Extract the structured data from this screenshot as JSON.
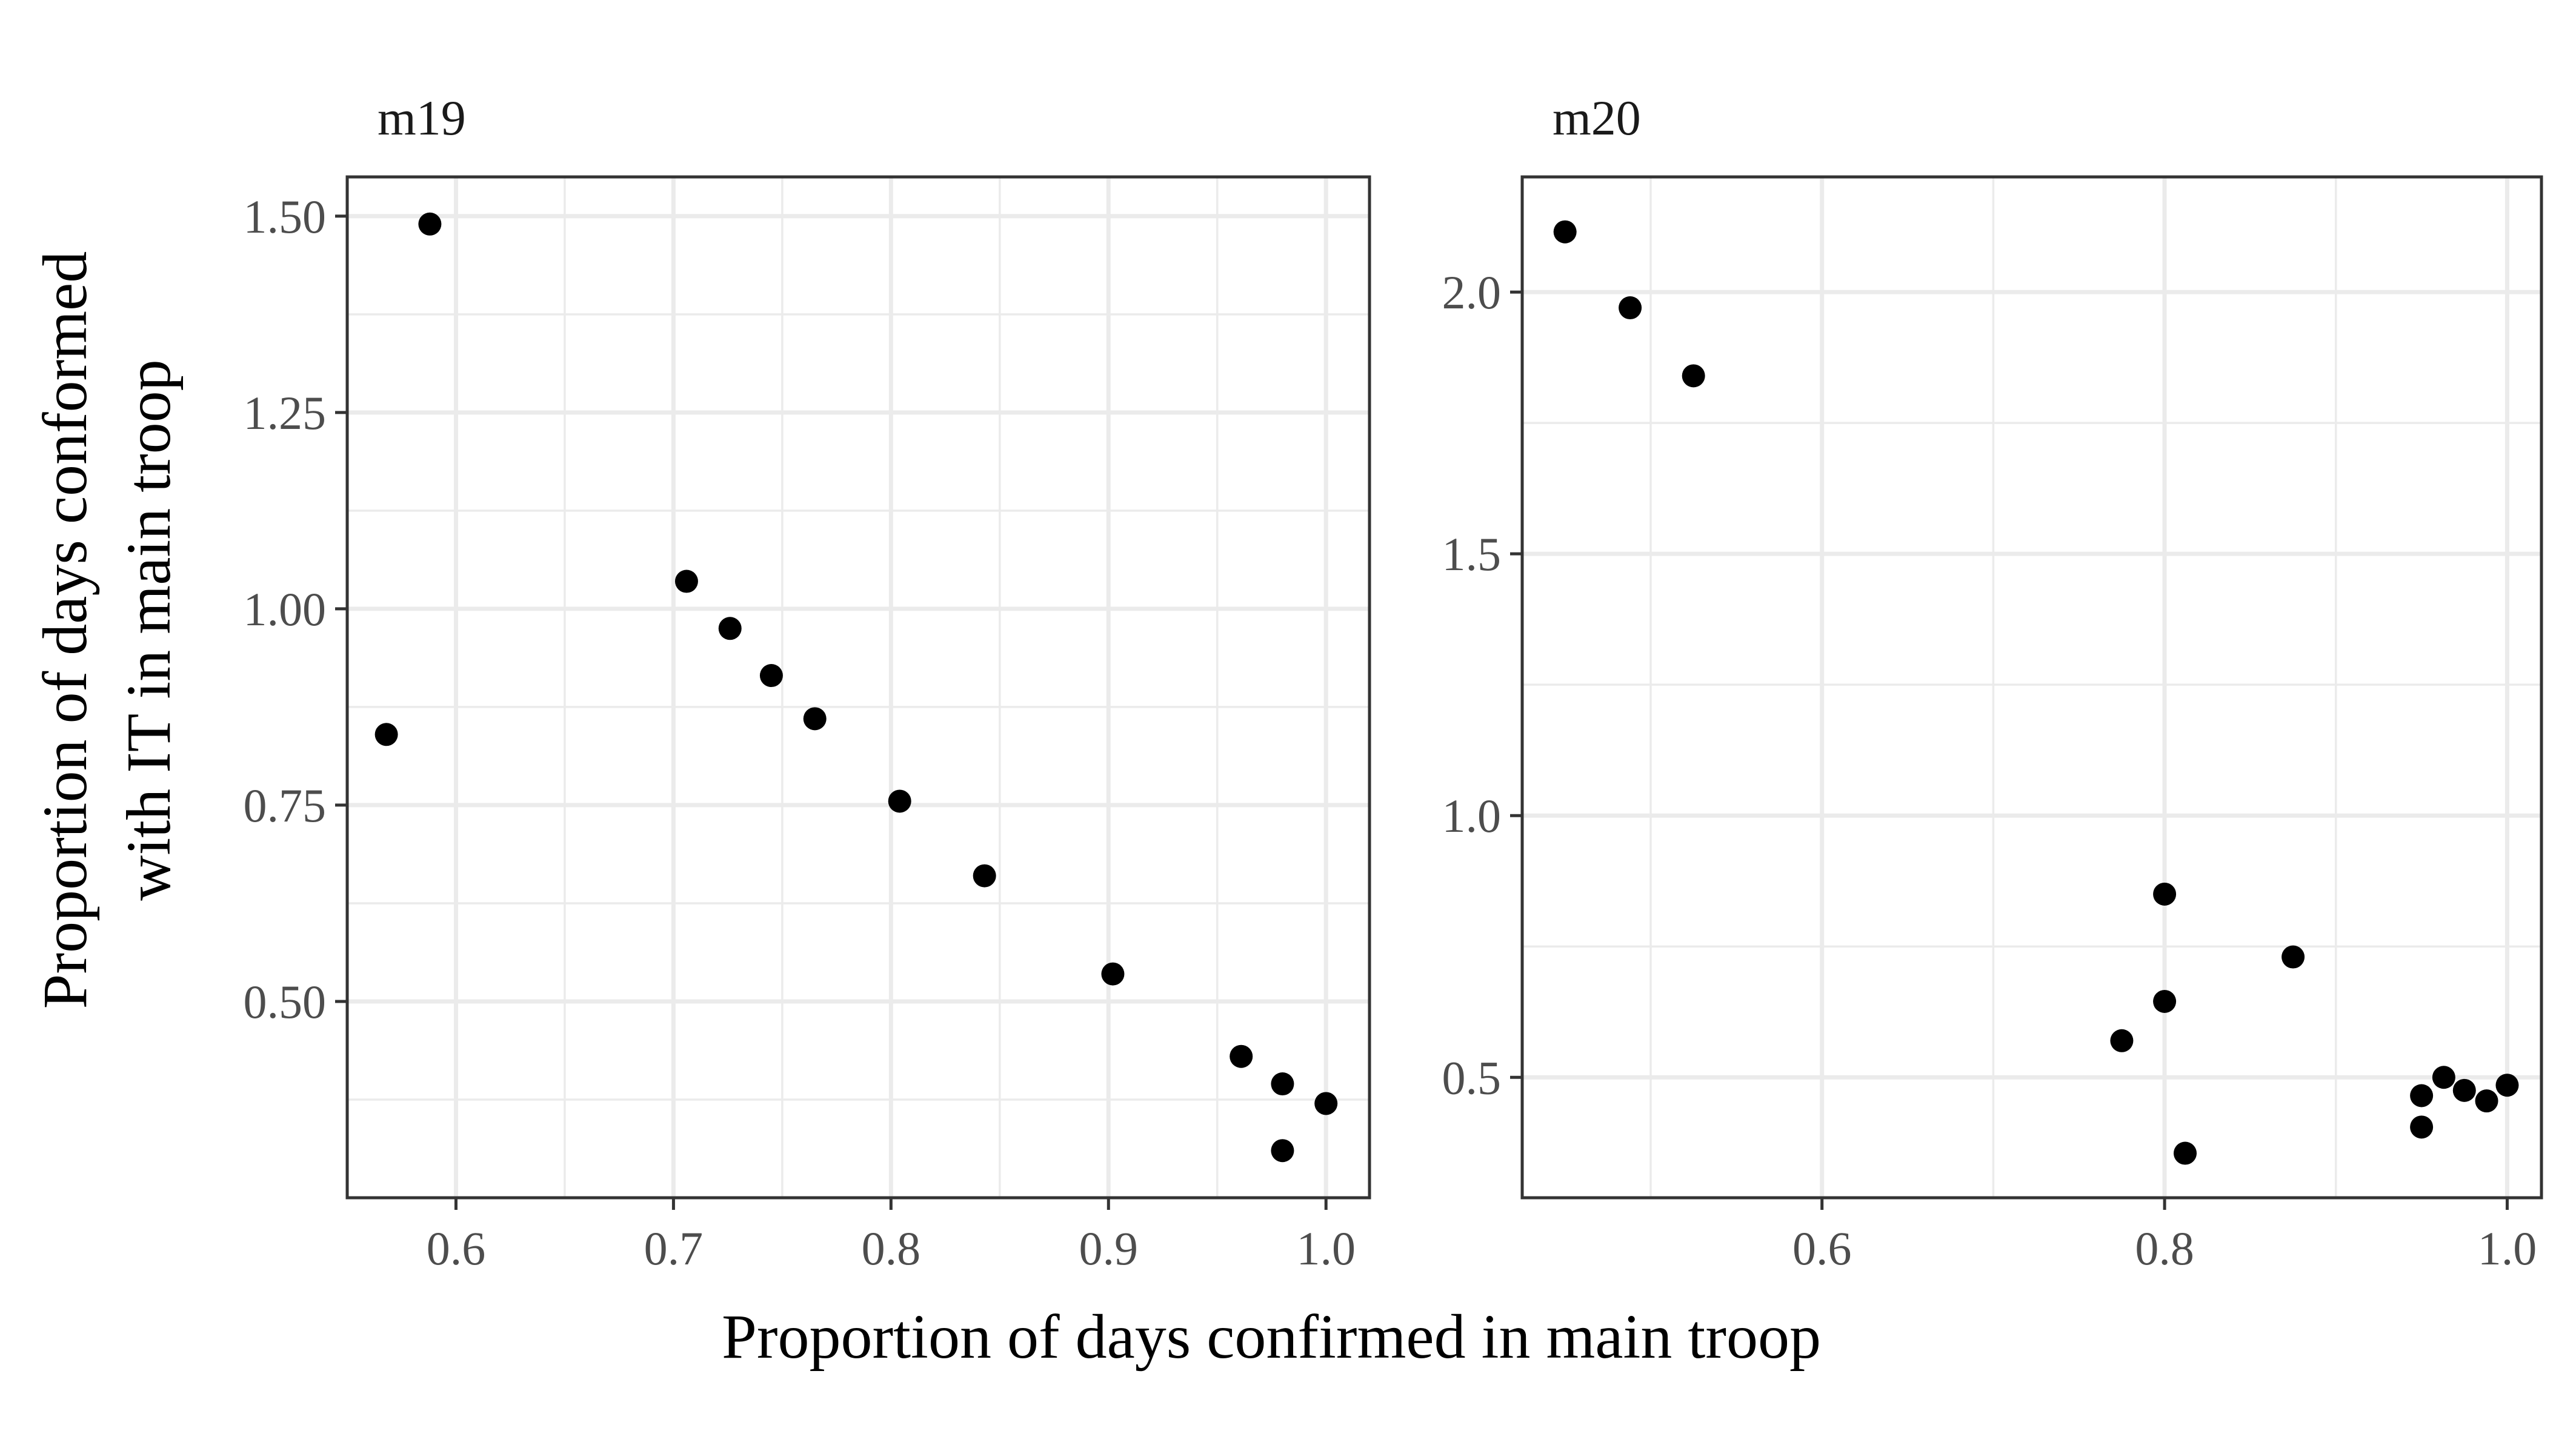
{
  "chart_data": {
    "type": "scatter",
    "xlabel": "Proportion of days confirmed in main troop",
    "ylabel_lines": [
      "Proportion of days conformed",
      "with IT in main troop"
    ],
    "panels": [
      {
        "label": "m19",
        "xlim": [
          0.55,
          1.02
        ],
        "ylim": [
          0.25,
          1.55
        ],
        "xticks": [
          0.6,
          0.7,
          0.8,
          0.9,
          1.0
        ],
        "xtick_labels": [
          "0.6",
          "0.7",
          "0.8",
          "0.9",
          "1.0"
        ],
        "yticks": [
          0.5,
          0.75,
          1.0,
          1.25,
          1.5
        ],
        "ytick_labels": [
          "0.50",
          "0.75",
          "1.00",
          "1.25",
          "1.50"
        ],
        "points": [
          {
            "x": 0.568,
            "y": 0.84
          },
          {
            "x": 0.588,
            "y": 1.49
          },
          {
            "x": 0.706,
            "y": 1.035
          },
          {
            "x": 0.726,
            "y": 0.975
          },
          {
            "x": 0.745,
            "y": 0.915
          },
          {
            "x": 0.765,
            "y": 0.86
          },
          {
            "x": 0.804,
            "y": 0.755
          },
          {
            "x": 0.843,
            "y": 0.66
          },
          {
            "x": 0.902,
            "y": 0.535
          },
          {
            "x": 0.961,
            "y": 0.43
          },
          {
            "x": 0.98,
            "y": 0.395
          },
          {
            "x": 0.98,
            "y": 0.31
          },
          {
            "x": 1.0,
            "y": 0.37
          }
        ]
      },
      {
        "label": "m20",
        "xlim": [
          0.425,
          1.02
        ],
        "ylim": [
          0.27,
          2.22
        ],
        "xticks": [
          0.6,
          0.8,
          1.0
        ],
        "xtick_labels": [
          "0.6",
          "0.8",
          "1.0"
        ],
        "yticks": [
          0.5,
          1.0,
          1.5,
          2.0
        ],
        "ytick_labels": [
          "0.5",
          "1.0",
          "1.5",
          "2.0"
        ],
        "points": [
          {
            "x": 0.45,
            "y": 2.115
          },
          {
            "x": 0.488,
            "y": 1.97
          },
          {
            "x": 0.525,
            "y": 1.84
          },
          {
            "x": 0.775,
            "y": 0.57
          },
          {
            "x": 0.8,
            "y": 0.85
          },
          {
            "x": 0.8,
            "y": 0.645
          },
          {
            "x": 0.812,
            "y": 0.355
          },
          {
            "x": 0.875,
            "y": 0.73
          },
          {
            "x": 0.95,
            "y": 0.465
          },
          {
            "x": 0.95,
            "y": 0.405
          },
          {
            "x": 0.963,
            "y": 0.5
          },
          {
            "x": 0.975,
            "y": 0.475
          },
          {
            "x": 0.988,
            "y": 0.455
          },
          {
            "x": 1.0,
            "y": 0.485
          }
        ]
      }
    ]
  }
}
